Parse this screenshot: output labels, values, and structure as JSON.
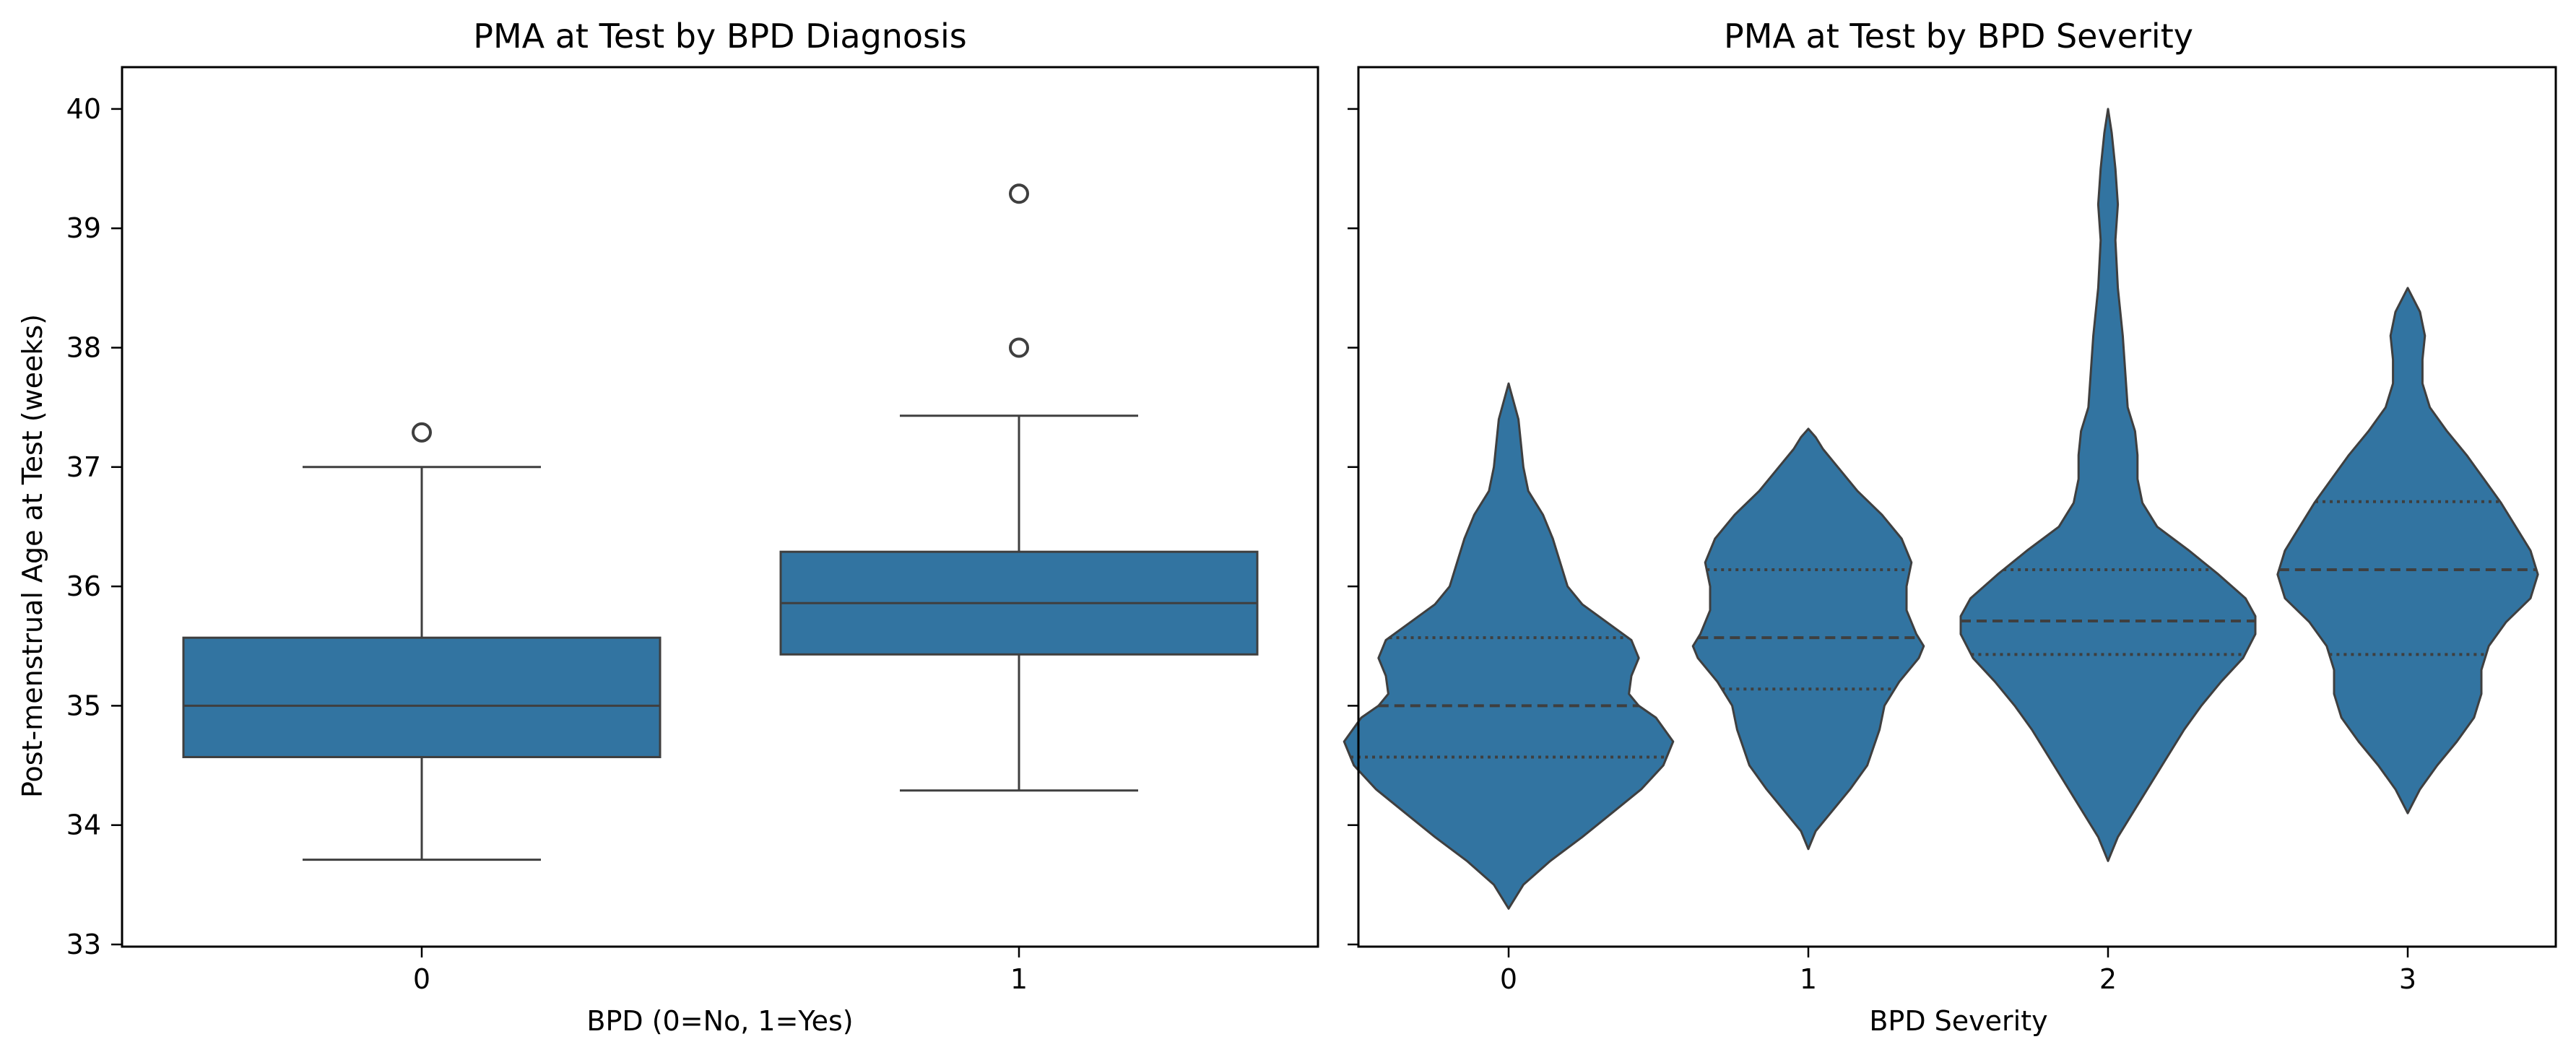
{
  "chart_data": [
    {
      "type": "box",
      "title": "PMA at Test by BPD Diagnosis",
      "xlabel": "BPD (0=No, 1=Yes)",
      "ylabel": "Post-menstrual Age at Test (weeks)",
      "ylim": [
        33,
        40.35
      ],
      "yticks": [
        "33",
        "34",
        "35",
        "36",
        "37",
        "38",
        "39",
        "40"
      ],
      "categories": [
        "0",
        "1"
      ],
      "boxes": [
        {
          "category": "0",
          "whisker_low": 33.71,
          "q1": 34.57,
          "median": 35.0,
          "q3": 35.57,
          "whisker_high": 37.0,
          "outliers": [
            37.29
          ]
        },
        {
          "category": "1",
          "whisker_low": 34.29,
          "q1": 35.43,
          "median": 35.86,
          "q3": 36.29,
          "whisker_high": 37.43,
          "outliers": [
            38.0,
            39.29
          ]
        }
      ],
      "color": "#3274a1",
      "grid": false,
      "legend": "none"
    },
    {
      "type": "violin",
      "title": "PMA at Test by BPD Severity",
      "xlabel": "BPD Severity",
      "ylabel": "",
      "ylim": [
        33,
        40.35
      ],
      "shared_y": true,
      "categories": [
        "0",
        "1",
        "2",
        "3"
      ],
      "violins": [
        {
          "category": "0",
          "q1": 34.57,
          "median": 35.0,
          "q3": 35.57,
          "profile": [
            [
              33.3,
              0
            ],
            [
              33.5,
              0.06
            ],
            [
              33.7,
              0.17
            ],
            [
              33.9,
              0.3
            ],
            [
              34.1,
              0.42
            ],
            [
              34.3,
              0.54
            ],
            [
              34.5,
              0.63
            ],
            [
              34.7,
              0.67
            ],
            [
              34.9,
              0.6
            ],
            [
              35.0,
              0.53
            ],
            [
              35.1,
              0.49
            ],
            [
              35.25,
              0.5
            ],
            [
              35.4,
              0.53
            ],
            [
              35.55,
              0.5
            ],
            [
              35.7,
              0.4
            ],
            [
              35.85,
              0.3
            ],
            [
              36.0,
              0.24
            ],
            [
              36.2,
              0.21
            ],
            [
              36.4,
              0.18
            ],
            [
              36.6,
              0.14
            ],
            [
              36.8,
              0.08
            ],
            [
              37.0,
              0.06
            ],
            [
              37.2,
              0.05
            ],
            [
              37.4,
              0.04
            ],
            [
              37.55,
              0.02
            ],
            [
              37.7,
              0
            ]
          ]
        },
        {
          "category": "1",
          "q1": 35.14,
          "median": 35.57,
          "q3": 36.14,
          "profile": [
            [
              33.8,
              0
            ],
            [
              33.95,
              0.03
            ],
            [
              34.1,
              0.09
            ],
            [
              34.3,
              0.17
            ],
            [
              34.5,
              0.24
            ],
            [
              34.8,
              0.29
            ],
            [
              35.0,
              0.31
            ],
            [
              35.2,
              0.37
            ],
            [
              35.4,
              0.45
            ],
            [
              35.5,
              0.47
            ],
            [
              35.6,
              0.44
            ],
            [
              35.8,
              0.4
            ],
            [
              36.0,
              0.4
            ],
            [
              36.2,
              0.42
            ],
            [
              36.4,
              0.38
            ],
            [
              36.6,
              0.3
            ],
            [
              36.8,
              0.2
            ],
            [
              37.0,
              0.12
            ],
            [
              37.15,
              0.06
            ],
            [
              37.25,
              0.03
            ],
            [
              37.32,
              0
            ]
          ]
        },
        {
          "category": "2",
          "q1": 35.43,
          "median": 35.71,
          "q3": 36.14,
          "profile": [
            [
              33.7,
              0
            ],
            [
              33.9,
              0.04
            ],
            [
              34.2,
              0.13
            ],
            [
              34.5,
              0.22
            ],
            [
              34.8,
              0.31
            ],
            [
              35.0,
              0.38
            ],
            [
              35.2,
              0.46
            ],
            [
              35.4,
              0.55
            ],
            [
              35.6,
              0.6
            ],
            [
              35.75,
              0.6
            ],
            [
              35.9,
              0.56
            ],
            [
              36.1,
              0.45
            ],
            [
              36.3,
              0.33
            ],
            [
              36.5,
              0.2
            ],
            [
              36.7,
              0.14
            ],
            [
              36.9,
              0.12
            ],
            [
              37.1,
              0.12
            ],
            [
              37.3,
              0.11
            ],
            [
              37.5,
              0.08
            ],
            [
              37.8,
              0.07
            ],
            [
              38.1,
              0.06
            ],
            [
              38.5,
              0.04
            ],
            [
              38.9,
              0.03
            ],
            [
              39.2,
              0.04
            ],
            [
              39.5,
              0.03
            ],
            [
              39.8,
              0.015
            ],
            [
              40.0,
              0
            ]
          ]
        },
        {
          "category": "3",
          "q1": 35.43,
          "median": 36.14,
          "q3": 36.71,
          "profile": [
            [
              34.1,
              0
            ],
            [
              34.3,
              0.05
            ],
            [
              34.5,
              0.12
            ],
            [
              34.7,
              0.2
            ],
            [
              34.9,
              0.27
            ],
            [
              35.1,
              0.3
            ],
            [
              35.3,
              0.3
            ],
            [
              35.5,
              0.33
            ],
            [
              35.7,
              0.4
            ],
            [
              35.9,
              0.5
            ],
            [
              36.1,
              0.53
            ],
            [
              36.3,
              0.5
            ],
            [
              36.5,
              0.44
            ],
            [
              36.7,
              0.38
            ],
            [
              36.9,
              0.31
            ],
            [
              37.1,
              0.24
            ],
            [
              37.3,
              0.16
            ],
            [
              37.5,
              0.09
            ],
            [
              37.7,
              0.06
            ],
            [
              37.9,
              0.06
            ],
            [
              38.1,
              0.07
            ],
            [
              38.3,
              0.05
            ],
            [
              38.5,
              0
            ]
          ]
        }
      ],
      "inner": "quartile",
      "color": "#3274a1",
      "grid": false,
      "legend": "none"
    }
  ]
}
